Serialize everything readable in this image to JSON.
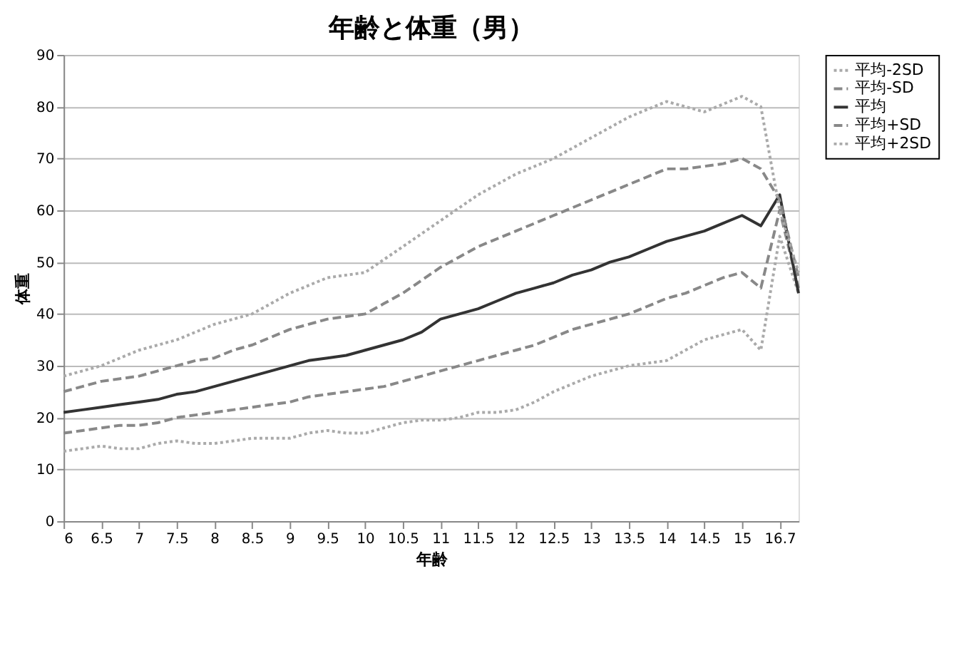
{
  "chart_data": {
    "type": "line",
    "title": "年齢と体重（男）",
    "xlabel": "年齢",
    "ylabel": "体重",
    "categories": [
      "6",
      null,
      "6.5",
      null,
      "7",
      null,
      "7.5",
      null,
      "8",
      null,
      "8.5",
      null,
      "9",
      null,
      "9.5",
      null,
      "10",
      null,
      "10.5",
      null,
      "11",
      null,
      "11.5",
      null,
      "12",
      null,
      "12.5",
      null,
      "13",
      null,
      "13.5",
      null,
      "14",
      null,
      "14.5",
      null,
      "15",
      null,
      "16.7",
      null
    ],
    "series": [
      {
        "name": "平均-2SD",
        "color": "#aaaaaa",
        "line_style": "dotted",
        "values": [
          13.5,
          14,
          14.5,
          14,
          14,
          15,
          15.5,
          15,
          15,
          15.5,
          16,
          16,
          16,
          17,
          17.5,
          17,
          17,
          18,
          19,
          19.5,
          19.5,
          20,
          21,
          21,
          21.5,
          23,
          25,
          26.5,
          28,
          29,
          30,
          30.5,
          31,
          33,
          35,
          36,
          37,
          33,
          55,
          44
        ]
      },
      {
        "name": "平均-SD",
        "color": "#888888",
        "line_style": "dashed",
        "values": [
          17,
          17.5,
          18,
          18.5,
          18.5,
          19,
          20,
          20.5,
          21,
          21.5,
          22,
          22.5,
          23,
          24,
          24.5,
          25,
          25.5,
          26,
          27,
          28,
          29,
          30,
          31,
          32,
          33,
          34,
          35.5,
          37,
          38,
          39,
          40,
          41.5,
          43,
          44,
          45.5,
          47,
          48,
          45,
          60,
          45
        ]
      },
      {
        "name": "平均",
        "color": "#333333",
        "line_style": "solid",
        "values": [
          21,
          21.5,
          22,
          22.5,
          23,
          23.5,
          24.5,
          25,
          26,
          27,
          28,
          29,
          30,
          31,
          31.5,
          32,
          33,
          34,
          35,
          36.5,
          39,
          40,
          41,
          42.5,
          44,
          45,
          46,
          47.5,
          48.5,
          50,
          51,
          52.5,
          54,
          55,
          56,
          57.5,
          59,
          57,
          63,
          44
        ]
      },
      {
        "name": "平均+SD",
        "color": "#888888",
        "line_style": "dashed",
        "values": [
          25,
          26,
          27,
          27.5,
          28,
          29,
          30,
          31,
          31.5,
          33,
          34,
          35.5,
          37,
          38,
          39,
          39.5,
          40,
          42,
          44,
          46.5,
          49,
          51,
          53,
          54.5,
          56,
          57.5,
          59,
          60.5,
          62,
          63.5,
          65,
          66.5,
          68,
          68,
          68.5,
          69,
          70,
          68,
          62,
          47
        ]
      },
      {
        "name": "平均+2SD",
        "color": "#aaaaaa",
        "line_style": "dotted",
        "values": [
          28,
          29,
          30,
          31.5,
          33,
          34,
          35,
          36.5,
          38,
          39,
          40,
          42,
          44,
          45.5,
          47,
          47.5,
          48,
          50.5,
          53,
          55.5,
          58,
          60.5,
          63,
          65,
          67,
          68.5,
          70,
          72,
          74,
          76,
          78,
          79.5,
          81,
          80,
          79,
          80.5,
          82,
          80,
          60,
          48
        ]
      }
    ],
    "ylim": [
      0,
      90
    ],
    "yticks": [
      0,
      10,
      20,
      30,
      40,
      50,
      60,
      70,
      80,
      90
    ],
    "grid": "y",
    "legend": "right"
  }
}
